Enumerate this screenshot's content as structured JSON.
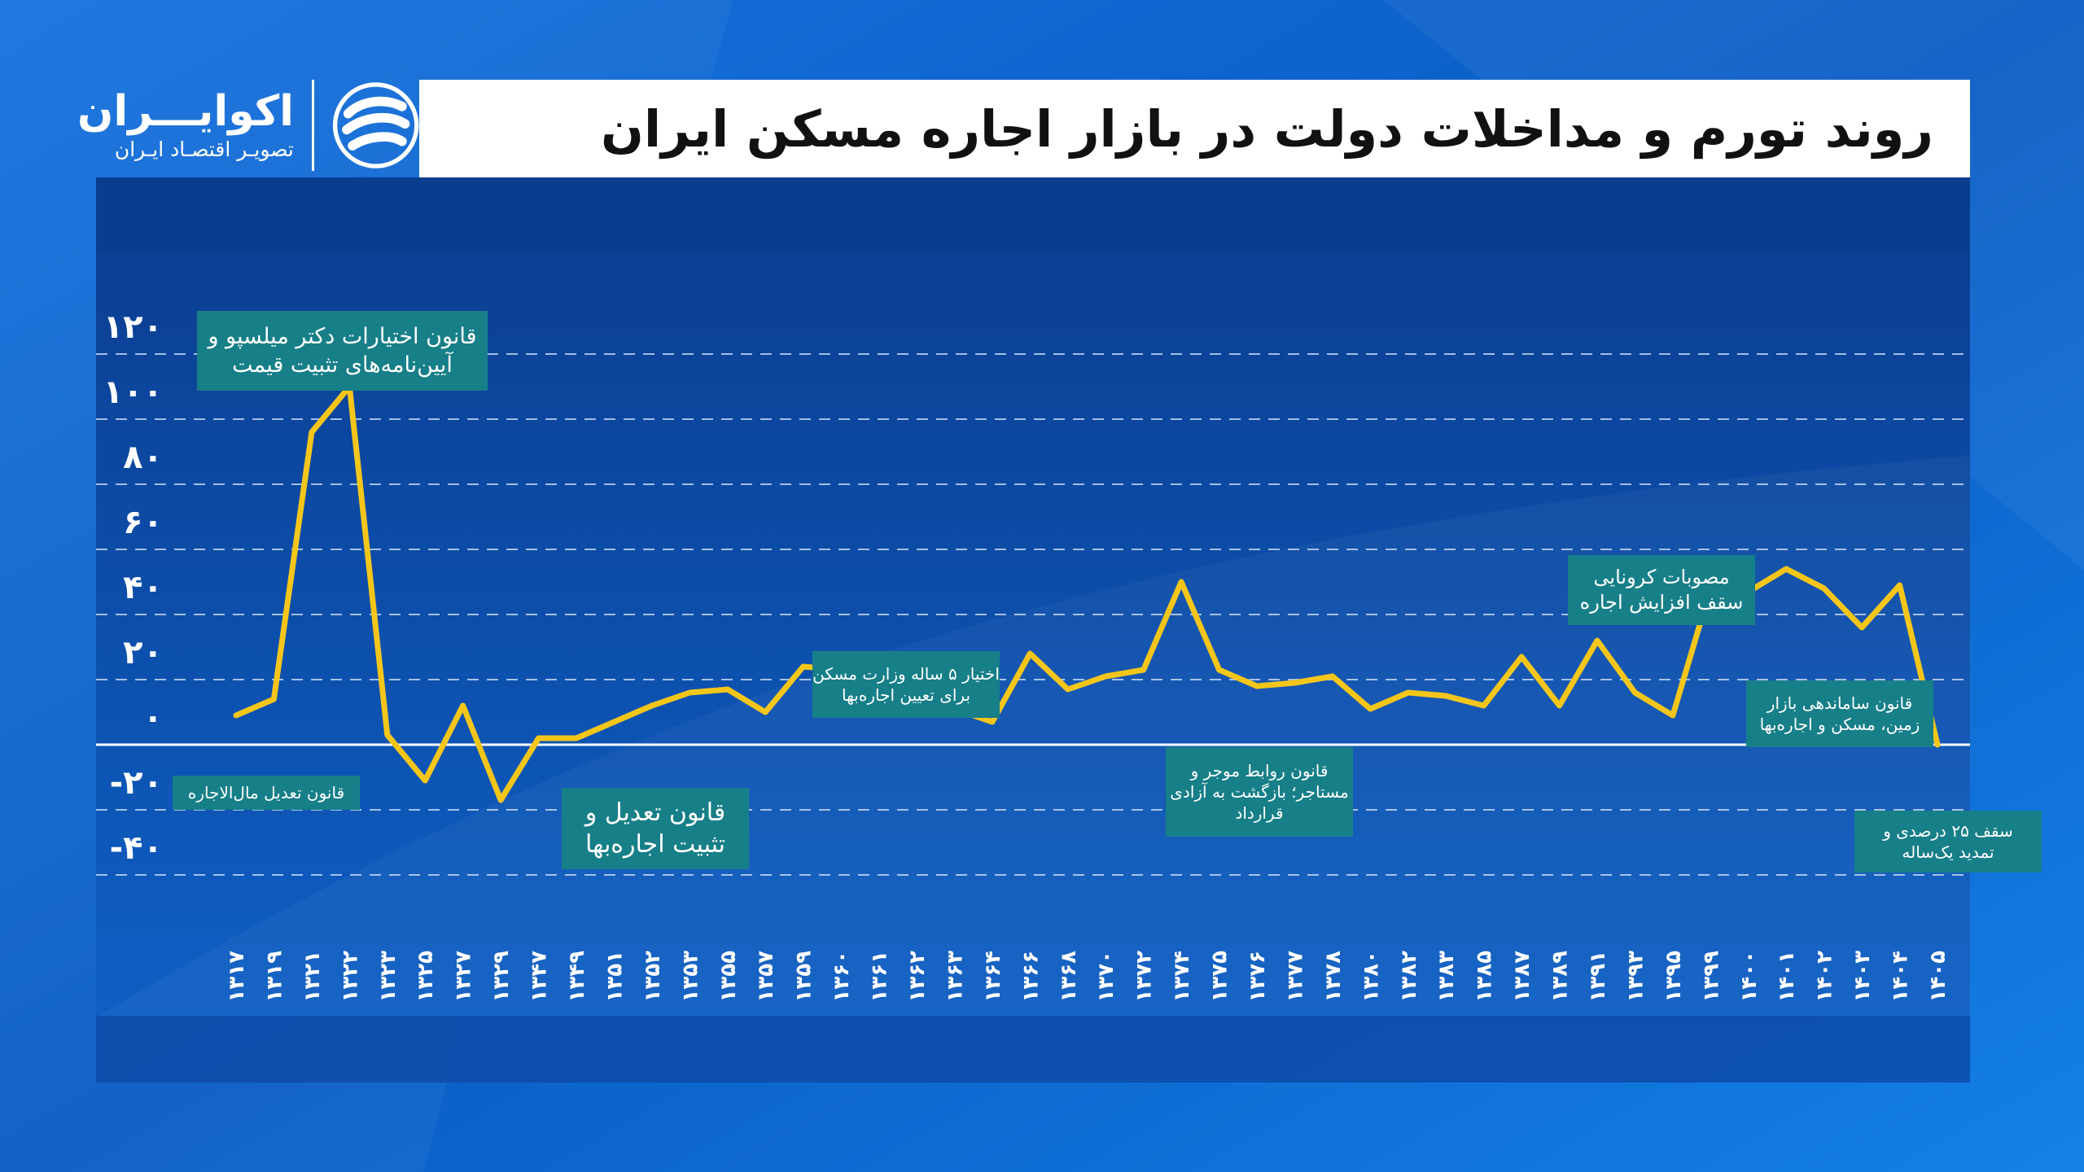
{
  "title": "روند تورم و مداخلات دولت در بازار اجاره مسکن ایران",
  "logo": {
    "name": "اکوایـــران",
    "tagline": "تصویـر اقتصـاد ایـران",
    "icon": "ecoiran-logo-icon"
  },
  "colors": {
    "line": "#f5c61a",
    "label_box": "#177f88",
    "background": "#0b63c8",
    "title_bar": "#ffffff",
    "grid": "#d6e6ff"
  },
  "chart_data": {
    "type": "line",
    "title": "روند تورم و مداخلات دولت در بازار اجاره مسکن ایران",
    "xlabel": "",
    "ylabel": "",
    "ylim": [
      -40,
      120
    ],
    "yticks": [
      -40,
      -20,
      0,
      20,
      40,
      60,
      80,
      100,
      120
    ],
    "ytick_labels": [
      "-۴۰",
      "-۲۰",
      "۰",
      "۲۰",
      "۴۰",
      "۶۰",
      "۸۰",
      "۱۰۰",
      "۱۲۰"
    ],
    "grid": true,
    "legend": "none",
    "x": [
      "۱۳۱۷",
      "۱۳۱۹",
      "۱۳۲۱",
      "۱۳۲۲",
      "۱۳۲۳",
      "۱۳۲۵",
      "۱۳۲۷",
      "۱۳۲۹",
      "۱۳۴۷",
      "۱۳۴۹",
      "۱۳۵۱",
      "۱۳۵۲",
      "۱۳۵۳",
      "۱۳۵۵",
      "۱۳۵۷",
      "۱۳۵۹",
      "۱۳۶۰",
      "۱۳۶۱",
      "۱۳۶۲",
      "۱۳۶۳",
      "۱۳۶۴",
      "۱۳۶۶",
      "۱۳۶۸",
      "۱۳۷۰",
      "۱۳۷۲",
      "۱۳۷۴",
      "۱۳۷۵",
      "۱۳۷۶",
      "۱۳۷۷",
      "۱۳۷۸",
      "۱۳۸۰",
      "۱۳۸۲",
      "۱۳۸۳",
      "۱۳۸۵",
      "۱۳۸۷",
      "۱۳۸۹",
      "۱۳۹۱",
      "۱۳۹۳",
      "۱۳۹۵",
      "۱۳۹۹",
      "۱۴۰۰",
      "۱۴۰۱",
      "۱۴۰۲",
      "۱۴۰۳",
      "۱۴۰۴",
      "۱۴۰۵"
    ],
    "series": [
      {
        "values": [
          9,
          14,
          96,
          110,
          3,
          -11,
          12,
          -17,
          2,
          2,
          7,
          12,
          16,
          17,
          10,
          24,
          23,
          20,
          16,
          11,
          7,
          28,
          17,
          21,
          23,
          50,
          23,
          18,
          19,
          21,
          11,
          16,
          15,
          12,
          27,
          12,
          32,
          16,
          9,
          48,
          47,
          54,
          48,
          36,
          49,
          0
        ]
      }
    ],
    "annotations": [
      {
        "lines": [
          "قانون تعدیل مال‌الاجاره"
        ],
        "anchor": "۱۳۱۷"
      },
      {
        "lines": [
          "قانون اختیارات دکتر میلسپو و",
          "آیین‌نامه‌های تثبیت قیمت"
        ],
        "anchor": "۱۳۲۲"
      },
      {
        "lines": [
          "قانون تعدیل و",
          "تثبیت اجاره‌بها"
        ],
        "anchor": "۱۳۴۹"
      },
      {
        "lines": [
          "اختیار ۵ ساله وزارت مسکن",
          "برای تعیین اجاره‌بها"
        ],
        "anchor": "۱۳۶۰"
      },
      {
        "lines": [
          "قانون روابط موجر و",
          "مستاجر؛ بازگشت به آزادی",
          "قرارداد"
        ],
        "anchor": "۱۳۷۶"
      },
      {
        "lines": [
          "مصوبات کرونایی",
          "سقف افزایش اجاره"
        ],
        "anchor": "۱۳۹۹"
      },
      {
        "lines": [
          "قانون ساماندهی بازار",
          "زمین، مسکن و اجاره‌بها"
        ],
        "anchor": "۱۴۰۳"
      },
      {
        "lines": [
          "سقف ۲۵ درصدی و",
          "تمدید یک‌ساله"
        ],
        "anchor": "۱۴۰۵"
      }
    ]
  }
}
